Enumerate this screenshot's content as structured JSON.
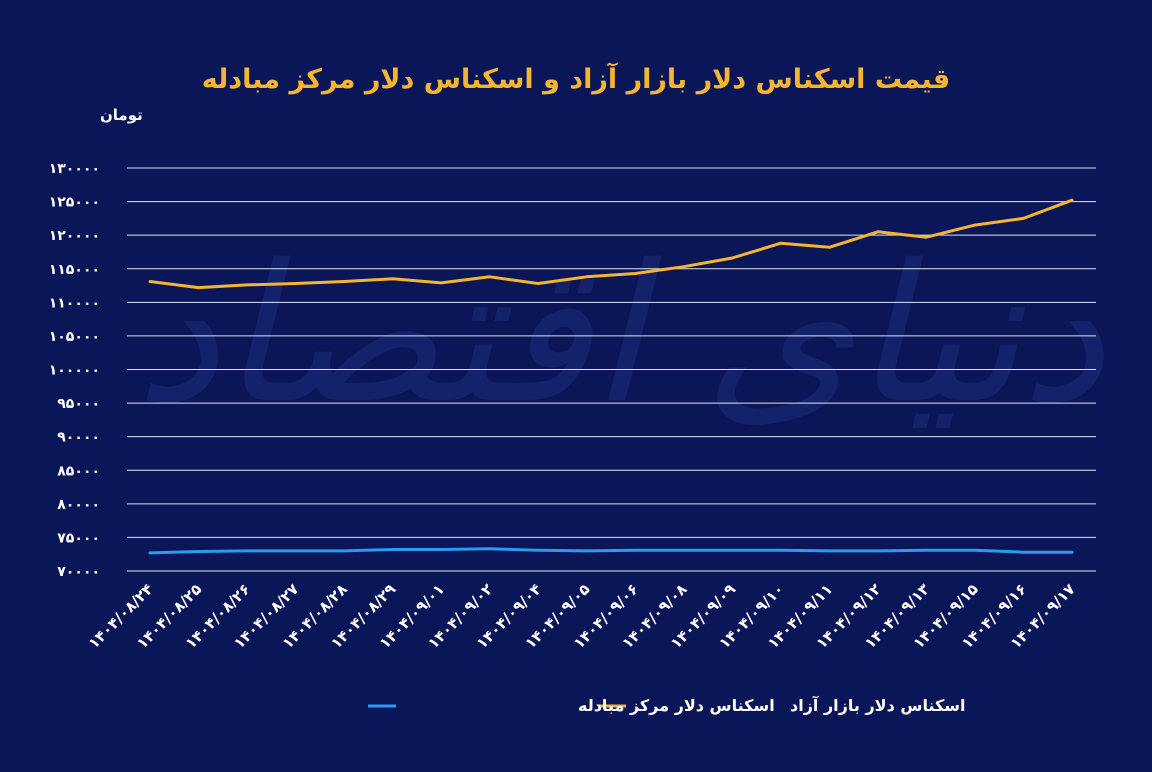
{
  "chart_data": {
    "type": "line",
    "title": "قیمت اسکناس دلار بازار آزاد و اسکناس دلار مرکز مبادله",
    "ylabel": "تومان",
    "xlabel": "",
    "ylim": [
      70000,
      130000
    ],
    "yticks": [
      70000,
      75000,
      80000,
      85000,
      90000,
      95000,
      100000,
      105000,
      110000,
      115000,
      120000,
      125000,
      130000
    ],
    "ytick_labels": [
      "۷۰۰۰۰",
      "۷۵۰۰۰",
      "۸۰۰۰۰",
      "۸۵۰۰۰",
      "۹۰۰۰۰",
      "۹۵۰۰۰",
      "۱۰۰۰۰۰",
      "۱۰۵۰۰۰",
      "۱۱۰۰۰۰",
      "۱۱۵۰۰۰",
      "۱۲۰۰۰۰",
      "۱۲۵۰۰۰",
      "۱۳۰۰۰۰"
    ],
    "grid": true,
    "legend_position": "bottom",
    "categories": [
      "1404/08/24",
      "1404/08/25",
      "1404/08/26",
      "1404/08/27",
      "1404/08/28",
      "1404/08/29",
      "1404/09/01",
      "1404/09/02",
      "1404/09/04",
      "1404/09/05",
      "1404/09/06",
      "1404/09/08",
      "1404/09/09",
      "1404/09/10",
      "1404/09/11",
      "1404/09/12",
      "1404/09/13",
      "1404/09/15",
      "1404/09/16",
      "1404/09/17"
    ],
    "category_labels": [
      "۱۴۰۴/۰۸/۲۴",
      "۱۴۰۴/۰۸/۲۵",
      "۱۴۰۴/۰۸/۲۶",
      "۱۴۰۴/۰۸/۲۷",
      "۱۴۰۴/۰۸/۲۸",
      "۱۴۰۴/۰۸/۲۹",
      "۱۴۰۴/۰۹/۰۱",
      "۱۴۰۴/۰۹/۰۲",
      "۱۴۰۴/۰۹/۰۴",
      "۱۴۰۴/۰۹/۰۵",
      "۱۴۰۴/۰۹/۰۶",
      "۱۴۰۴/۰۹/۰۸",
      "۱۴۰۴/۰۹/۰۹",
      "۱۴۰۴/۰۹/۱۰",
      "۱۴۰۴/۰۹/۱۱",
      "۱۴۰۴/۰۹/۱۲",
      "۱۴۰۴/۰۹/۱۳",
      "۱۴۰۴/۰۹/۱۵",
      "۱۴۰۴/۰۹/۱۶",
      "۱۴۰۴/۰۹/۱۷"
    ],
    "series": [
      {
        "name": "اسکناس دلار بازار آزاد",
        "color": "#f5b530",
        "values": [
          113100,
          112200,
          112600,
          112800,
          113100,
          113500,
          112900,
          113800,
          112800,
          113800,
          114300,
          115300,
          116600,
          118800,
          118200,
          120500,
          119700,
          121500,
          122500,
          125200
        ]
      },
      {
        "name": "اسکناس دلار مرکز مبادله",
        "color": "#2a9bf0",
        "values": [
          72700,
          72900,
          73000,
          73000,
          73000,
          73200,
          73200,
          73300,
          73100,
          73000,
          73100,
          73100,
          73100,
          73100,
          73000,
          73000,
          73100,
          73100,
          72800,
          72800
        ]
      }
    ]
  },
  "watermark": "دنیای اقتصاد",
  "colors": {
    "background": "#0b1658",
    "grid": "#dde3f5",
    "title": "#f5b530",
    "text": "#ffffff"
  }
}
